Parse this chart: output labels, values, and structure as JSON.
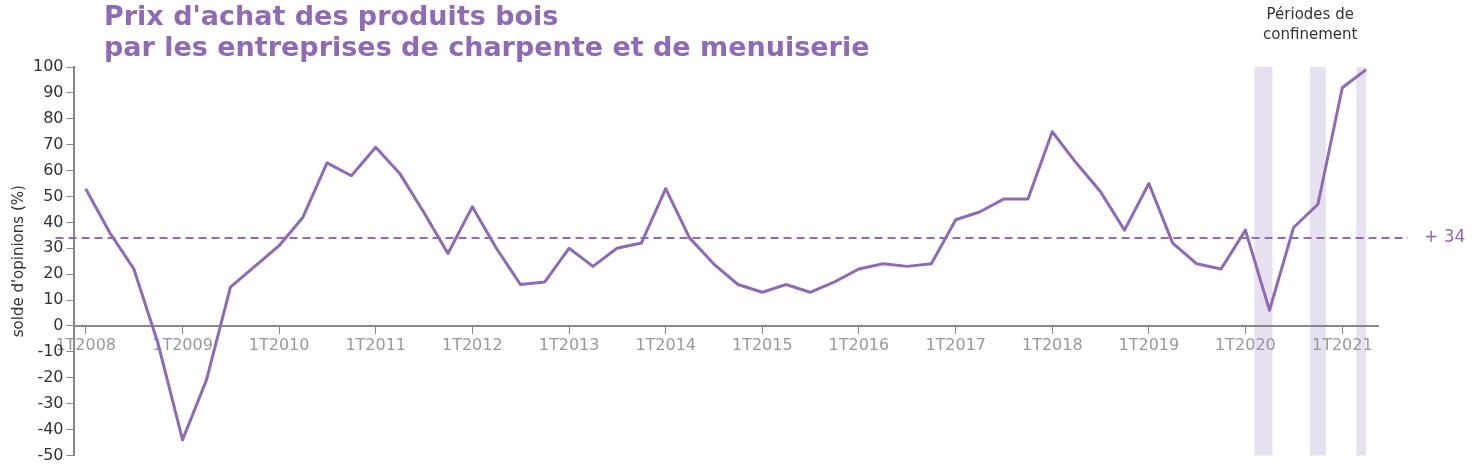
{
  "chart_data": {
    "type": "line",
    "title": "Prix d'achat des produits bois\npar les entreprises de charpente et de menuiserie",
    "ylabel": "solde d'opinions (%)",
    "x": [
      "2008-01",
      "2008-04",
      "2008-07",
      "2008-10",
      "2009-01",
      "2009-04",
      "2009-07",
      "2009-10",
      "2010-01",
      "2010-04",
      "2010-07",
      "2010-10",
      "2011-01",
      "2011-04",
      "2011-07",
      "2011-10",
      "2012-01",
      "2012-04",
      "2012-07",
      "2012-10",
      "2013-01",
      "2013-04",
      "2013-07",
      "2013-10",
      "2014-01",
      "2014-04",
      "2014-07",
      "2014-10",
      "2015-01",
      "2015-04",
      "2015-07",
      "2015-10",
      "2016-01",
      "2016-04",
      "2016-07",
      "2016-10",
      "2017-01",
      "2017-04",
      "2017-07",
      "2017-10",
      "2018-01",
      "2018-04",
      "2018-07",
      "2018-10",
      "2019-01",
      "2019-04",
      "2019-07",
      "2019-10",
      "2020-01",
      "2020-04",
      "2020-07",
      "2020-10",
      "2021-01",
      "2021-04"
    ],
    "series": [
      {
        "color": "#8e6bb3",
        "values": [
          53,
          36,
          22,
          -7,
          -44,
          -21,
          15,
          23,
          31,
          42,
          63,
          58,
          69,
          59,
          44,
          28,
          46,
          30,
          16,
          17,
          30,
          23,
          30,
          32,
          53,
          34,
          24,
          16,
          13,
          16,
          13,
          17,
          22,
          24,
          23,
          24,
          41,
          44,
          49,
          49,
          75,
          63,
          52,
          37,
          55,
          32,
          24,
          22,
          37,
          6,
          38,
          47,
          92,
          99
        ]
      }
    ],
    "xlim": [
      "2007-11-16",
      "2021-05-16"
    ],
    "xticks": [
      {
        "value": "2008-01",
        "label": "1T2008"
      },
      {
        "value": "2009-01",
        "label": "1T2009"
      },
      {
        "value": "2010-01",
        "label": "1T2010"
      },
      {
        "value": "2011-01",
        "label": "1T2011"
      },
      {
        "value": "2012-01",
        "label": "1T2012"
      },
      {
        "value": "2013-01",
        "label": "1T2013"
      },
      {
        "value": "2014-01",
        "label": "1T2014"
      },
      {
        "value": "2015-01",
        "label": "1T2015"
      },
      {
        "value": "2016-01",
        "label": "1T2016"
      },
      {
        "value": "2017-01",
        "label": "1T2017"
      },
      {
        "value": "2018-01",
        "label": "1T2018"
      },
      {
        "value": "2019-01",
        "label": "1T2019"
      },
      {
        "value": "2020-01",
        "label": "1T2020"
      },
      {
        "value": "2021-01",
        "label": "1T2021"
      }
    ],
    "ylim": [
      -50,
      100
    ],
    "yticks": [
      -50,
      -40,
      -30,
      -20,
      -10,
      0,
      10,
      20,
      30,
      40,
      50,
      60,
      70,
      80,
      90,
      100
    ],
    "ref_lines": [
      {
        "axis": "y",
        "value": 34,
        "label": "+ 34",
        "color": "#8e6bb3",
        "line_style": "dashed"
      }
    ],
    "bands": [
      {
        "axis": "x",
        "from": "2020-02-04",
        "to": "2020-04-12",
        "color": "#e6e0ef"
      },
      {
        "axis": "x",
        "from": "2020-08-31",
        "to": "2020-10-31",
        "color": "#e6e0ef"
      },
      {
        "axis": "x",
        "from": "2021-02-23",
        "to": "2021-04-01",
        "color": "#e6e0ef"
      }
    ],
    "annotations": [
      "Périodes de\nconfinement"
    ],
    "grid": false,
    "legend": false,
    "marker": "none",
    "line_style": "solid"
  }
}
